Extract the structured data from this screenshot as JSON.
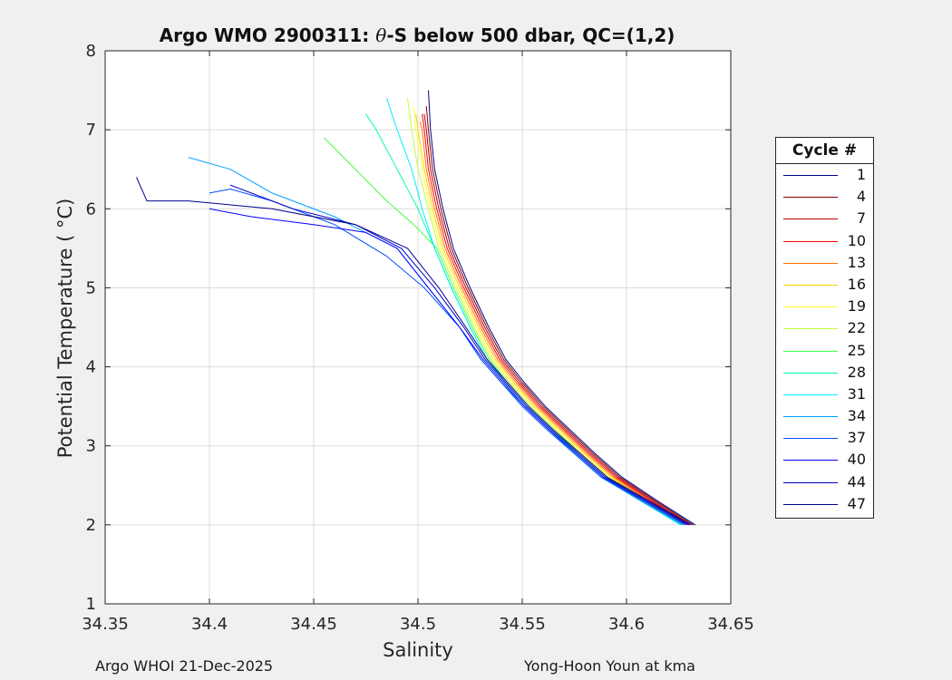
{
  "chart_data": {
    "type": "line",
    "title_parts": [
      "Argo WMO 2900311: ",
      "θ",
      "-S below 500 dbar,  QC=(1,2)"
    ],
    "xlabel": "Salinity",
    "ylabel": "Potential Temperature ( °C)",
    "xlim": [
      34.35,
      34.65
    ],
    "ylim": [
      1,
      8
    ],
    "xticks": [
      "34.35",
      "34.4",
      "34.45",
      "34.5",
      "34.55",
      "34.6",
      "34.65"
    ],
    "yticks": [
      "1",
      "2",
      "3",
      "4",
      "5",
      "6",
      "7",
      "8"
    ],
    "grid": true,
    "legend_title": "Cycle #",
    "legend_placement": "right-outside",
    "series": [
      {
        "name": "1",
        "color": "#00008f",
        "x": [
          34.633,
          34.615,
          34.598,
          34.585,
          34.573,
          34.561,
          34.551,
          34.542,
          34.534,
          34.525,
          34.517,
          34.512,
          34.508,
          34.506,
          34.505
        ],
        "y": [
          2.0,
          2.3,
          2.6,
          2.9,
          3.2,
          3.5,
          3.8,
          4.1,
          4.5,
          5.0,
          5.5,
          6.0,
          6.5,
          7.0,
          7.5
        ]
      },
      {
        "name": "4",
        "color": "#800000",
        "x": [
          34.632,
          34.614,
          34.597,
          34.584,
          34.572,
          34.56,
          34.55,
          34.541,
          34.533,
          34.524,
          34.516,
          34.511,
          34.507,
          34.505,
          34.504
        ],
        "y": [
          2.0,
          2.3,
          2.6,
          2.9,
          3.2,
          3.5,
          3.8,
          4.1,
          4.5,
          5.0,
          5.5,
          6.0,
          6.5,
          7.0,
          7.3
        ]
      },
      {
        "name": "7",
        "color": "#b00000",
        "x": [
          34.631,
          34.613,
          34.596,
          34.583,
          34.571,
          34.559,
          34.549,
          34.54,
          34.532,
          34.523,
          34.515,
          34.51,
          34.506,
          34.504,
          34.503
        ],
        "y": [
          2.0,
          2.3,
          2.6,
          2.9,
          3.2,
          3.5,
          3.8,
          4.1,
          4.5,
          5.0,
          5.5,
          6.0,
          6.5,
          7.0,
          7.2
        ]
      },
      {
        "name": "10",
        "color": "#ff0000",
        "x": [
          34.63,
          34.612,
          34.595,
          34.582,
          34.57,
          34.558,
          34.548,
          34.539,
          34.531,
          34.522,
          34.514,
          34.509,
          34.505,
          34.503,
          34.502
        ],
        "y": [
          2.0,
          2.3,
          2.6,
          2.9,
          3.2,
          3.5,
          3.8,
          4.1,
          4.5,
          5.0,
          5.5,
          6.0,
          6.5,
          7.0,
          7.2
        ]
      },
      {
        "name": "13",
        "color": "#ff7000",
        "x": [
          34.629,
          34.611,
          34.594,
          34.581,
          34.569,
          34.557,
          34.547,
          34.538,
          34.53,
          34.521,
          34.513,
          34.508,
          34.504,
          34.502,
          34.501
        ],
        "y": [
          2.0,
          2.3,
          2.6,
          2.9,
          3.2,
          3.5,
          3.8,
          4.1,
          4.5,
          5.0,
          5.5,
          6.0,
          6.5,
          7.0,
          7.1
        ]
      },
      {
        "name": "16",
        "color": "#ffcf00",
        "x": [
          34.629,
          34.61,
          34.593,
          34.58,
          34.568,
          34.556,
          34.546,
          34.537,
          34.529,
          34.52,
          34.512,
          34.507,
          34.503,
          34.5,
          34.499
        ],
        "y": [
          2.0,
          2.3,
          2.6,
          2.9,
          3.2,
          3.5,
          3.8,
          4.1,
          4.5,
          5.0,
          5.5,
          6.0,
          6.5,
          7.0,
          7.2
        ]
      },
      {
        "name": "19",
        "color": "#ffff30",
        "x": [
          34.628,
          34.61,
          34.592,
          34.579,
          34.567,
          34.555,
          34.545,
          34.536,
          34.528,
          34.519,
          34.511,
          34.506,
          34.502,
          34.499,
          34.498
        ],
        "y": [
          2.0,
          2.3,
          2.6,
          2.9,
          3.2,
          3.5,
          3.8,
          4.1,
          4.5,
          5.0,
          5.5,
          6.0,
          6.5,
          7.0,
          7.3
        ]
      },
      {
        "name": "22",
        "color": "#bfff40",
        "x": [
          34.627,
          34.609,
          34.591,
          34.578,
          34.566,
          34.554,
          34.544,
          34.535,
          34.527,
          34.518,
          34.51,
          34.505,
          34.5,
          34.497,
          34.495
        ],
        "y": [
          2.0,
          2.3,
          2.6,
          2.9,
          3.2,
          3.5,
          3.8,
          4.1,
          4.5,
          5.0,
          5.5,
          6.0,
          6.5,
          7.0,
          7.4
        ]
      },
      {
        "name": "25",
        "color": "#40ff40",
        "x": [
          34.627,
          34.608,
          34.59,
          34.577,
          34.565,
          34.553,
          34.543,
          34.534,
          34.526,
          34.517,
          34.509,
          34.498,
          34.485,
          34.47,
          34.455
        ],
        "y": [
          2.0,
          2.3,
          2.6,
          2.9,
          3.2,
          3.5,
          3.8,
          4.1,
          4.5,
          5.0,
          5.5,
          5.8,
          6.1,
          6.5,
          6.9
        ]
      },
      {
        "name": "28",
        "color": "#00ff9f",
        "x": [
          34.626,
          34.607,
          34.589,
          34.576,
          34.564,
          34.552,
          34.542,
          34.533,
          34.525,
          34.516,
          34.508,
          34.5,
          34.49,
          34.48,
          34.475
        ],
        "y": [
          2.0,
          2.3,
          2.6,
          2.9,
          3.2,
          3.5,
          3.8,
          4.1,
          4.5,
          5.0,
          5.5,
          6.0,
          6.5,
          7.0,
          7.2
        ]
      },
      {
        "name": "31",
        "color": "#00efff",
        "x": [
          34.626,
          34.607,
          34.589,
          34.576,
          34.564,
          34.552,
          34.542,
          34.533,
          34.525,
          34.516,
          34.508,
          34.502,
          34.497,
          34.49,
          34.485
        ],
        "y": [
          2.0,
          2.3,
          2.6,
          2.9,
          3.2,
          3.5,
          3.8,
          4.1,
          4.5,
          5.0,
          5.5,
          6.0,
          6.5,
          7.0,
          7.4
        ]
      },
      {
        "name": "34",
        "color": "#00a0ff",
        "x": [
          34.627,
          34.607,
          34.588,
          34.575,
          34.563,
          34.551,
          34.54,
          34.53,
          34.52,
          34.505,
          34.49,
          34.46,
          34.43,
          34.41,
          34.39
        ],
        "y": [
          2.0,
          2.3,
          2.6,
          2.9,
          3.2,
          3.5,
          3.8,
          4.1,
          4.5,
          5.0,
          5.5,
          5.9,
          6.2,
          6.5,
          6.65
        ]
      },
      {
        "name": "37",
        "color": "#0050ff",
        "x": [
          34.628,
          34.608,
          34.588,
          34.575,
          34.562,
          34.55,
          34.54,
          34.53,
          34.52,
          34.503,
          34.485,
          34.46,
          34.43,
          34.41,
          34.4
        ],
        "y": [
          2.0,
          2.3,
          2.6,
          2.9,
          3.2,
          3.5,
          3.8,
          4.1,
          4.5,
          5.0,
          5.4,
          5.8,
          6.1,
          6.25,
          6.2
        ]
      },
      {
        "name": "40",
        "color": "#0000ff",
        "x": [
          34.629,
          34.609,
          34.589,
          34.576,
          34.563,
          34.551,
          34.541,
          34.531,
          34.52,
          34.505,
          34.49,
          34.475,
          34.45,
          34.42,
          34.4
        ],
        "y": [
          2.0,
          2.3,
          2.6,
          2.9,
          3.2,
          3.5,
          3.8,
          4.1,
          4.5,
          5.0,
          5.5,
          5.7,
          5.8,
          5.9,
          6.0
        ]
      },
      {
        "name": "44",
        "color": "#0000c0",
        "x": [
          34.63,
          34.61,
          34.59,
          34.577,
          34.564,
          34.552,
          34.542,
          34.532,
          34.522,
          34.508,
          34.492,
          34.47,
          34.44,
          34.42,
          34.41
        ],
        "y": [
          2.0,
          2.3,
          2.6,
          2.9,
          3.2,
          3.5,
          3.8,
          4.1,
          4.5,
          5.0,
          5.5,
          5.8,
          6.0,
          6.2,
          6.3
        ]
      },
      {
        "name": "47",
        "color": "#00008a",
        "x": [
          34.631,
          34.611,
          34.591,
          34.578,
          34.565,
          34.553,
          34.543,
          34.533,
          34.523,
          34.51,
          34.495,
          34.47,
          34.43,
          34.39,
          34.37,
          34.365
        ],
        "y": [
          2.0,
          2.3,
          2.6,
          2.9,
          3.2,
          3.5,
          3.8,
          4.1,
          4.5,
          5.0,
          5.5,
          5.8,
          6.0,
          6.1,
          6.1,
          6.4
        ]
      }
    ]
  },
  "footer": {
    "left": "Argo WHOI 21-Dec-2025",
    "right": "Yong-Hoon Youn at kma"
  }
}
